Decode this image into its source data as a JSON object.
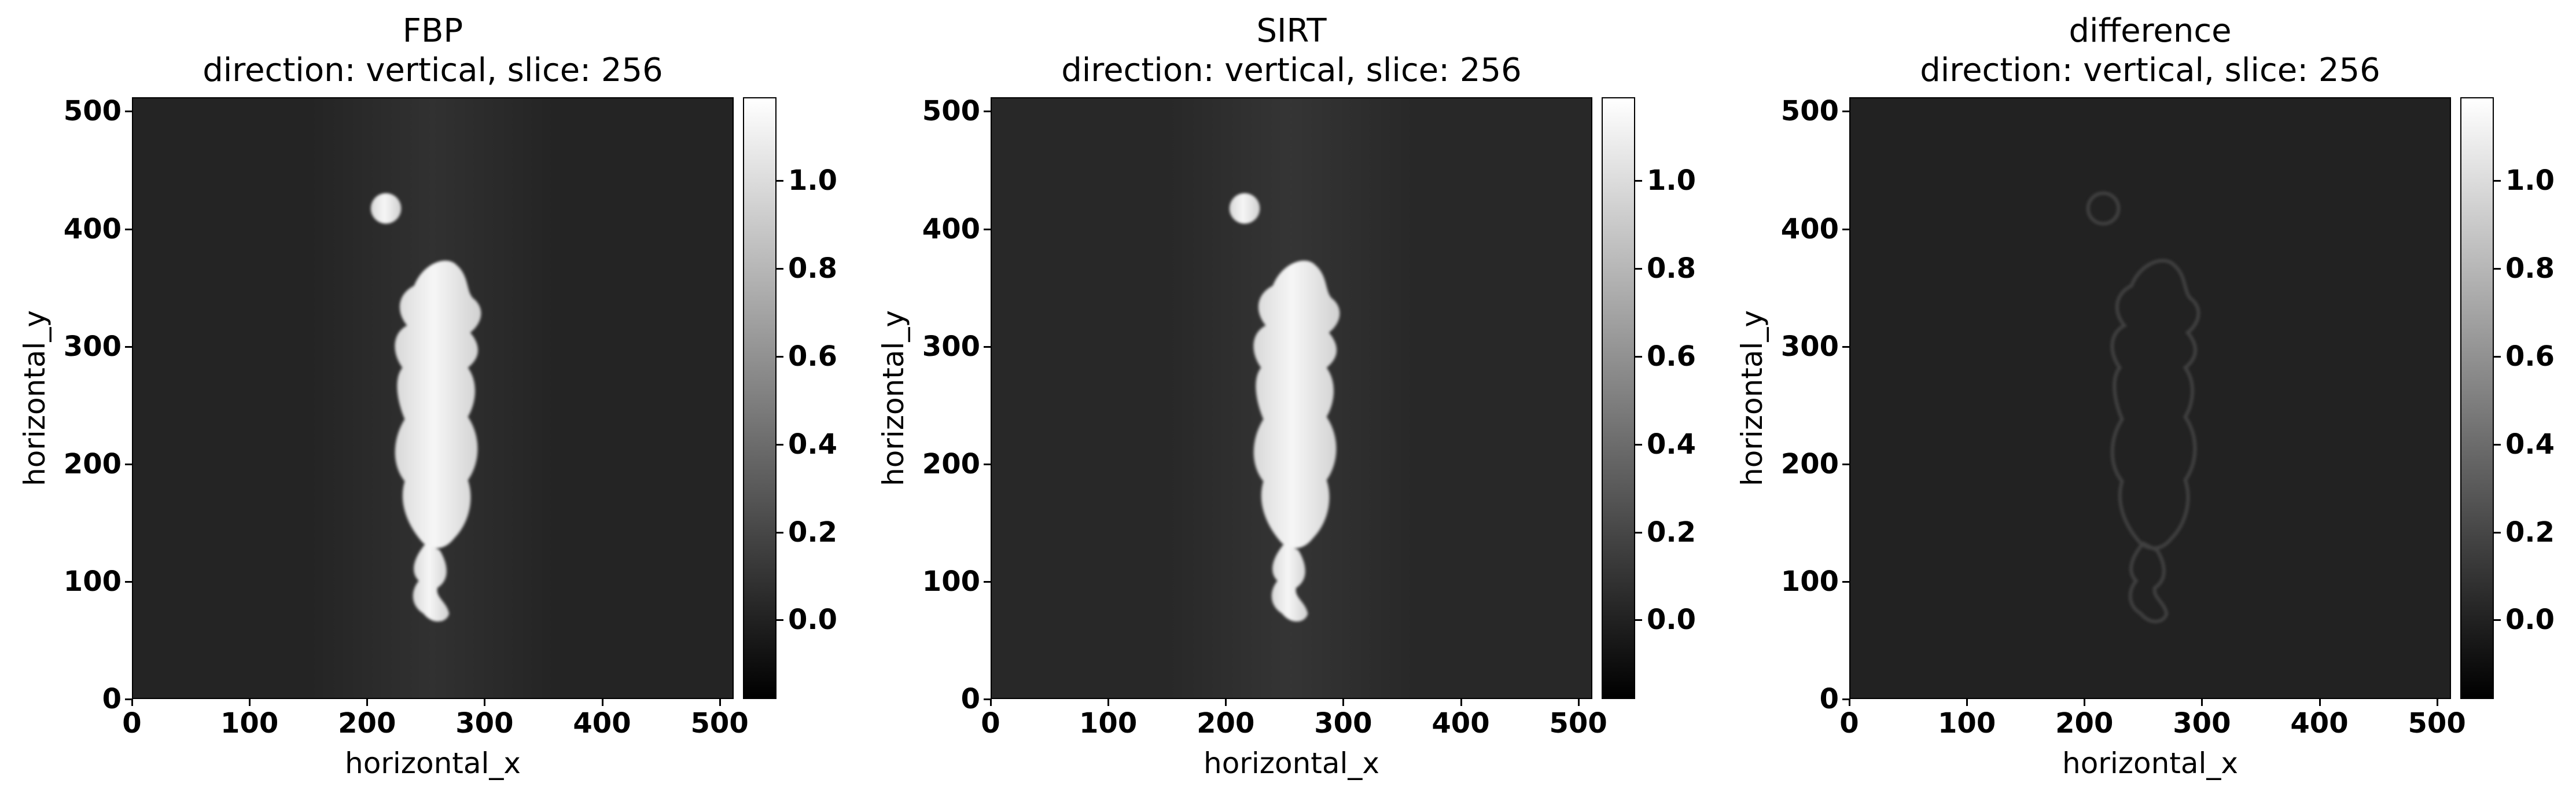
{
  "panels": [
    {
      "title": "FBP",
      "subtitle": "direction: vertical, slice: 256",
      "xlabel": "horizontal_x",
      "ylabel": "horizontal_y",
      "variant": "fbp"
    },
    {
      "title": "SIRT",
      "subtitle": "direction: vertical, slice: 256",
      "xlabel": "horizontal_x",
      "ylabel": "horizontal_y",
      "variant": "sirt"
    },
    {
      "title": "difference",
      "subtitle": "direction: vertical, slice: 256",
      "xlabel": "horizontal_x",
      "ylabel": "horizontal_y",
      "variant": "diff"
    }
  ],
  "axis_ticks": [
    "0",
    "100",
    "200",
    "300",
    "400",
    "500"
  ],
  "colorbar_ticks": [
    "0.0",
    "0.2",
    "0.4",
    "0.6",
    "0.8",
    "1.0"
  ],
  "colorbar_range": [
    -0.18,
    1.19
  ],
  "colormap": "grayscale",
  "image_extent": [
    0,
    512
  ]
}
